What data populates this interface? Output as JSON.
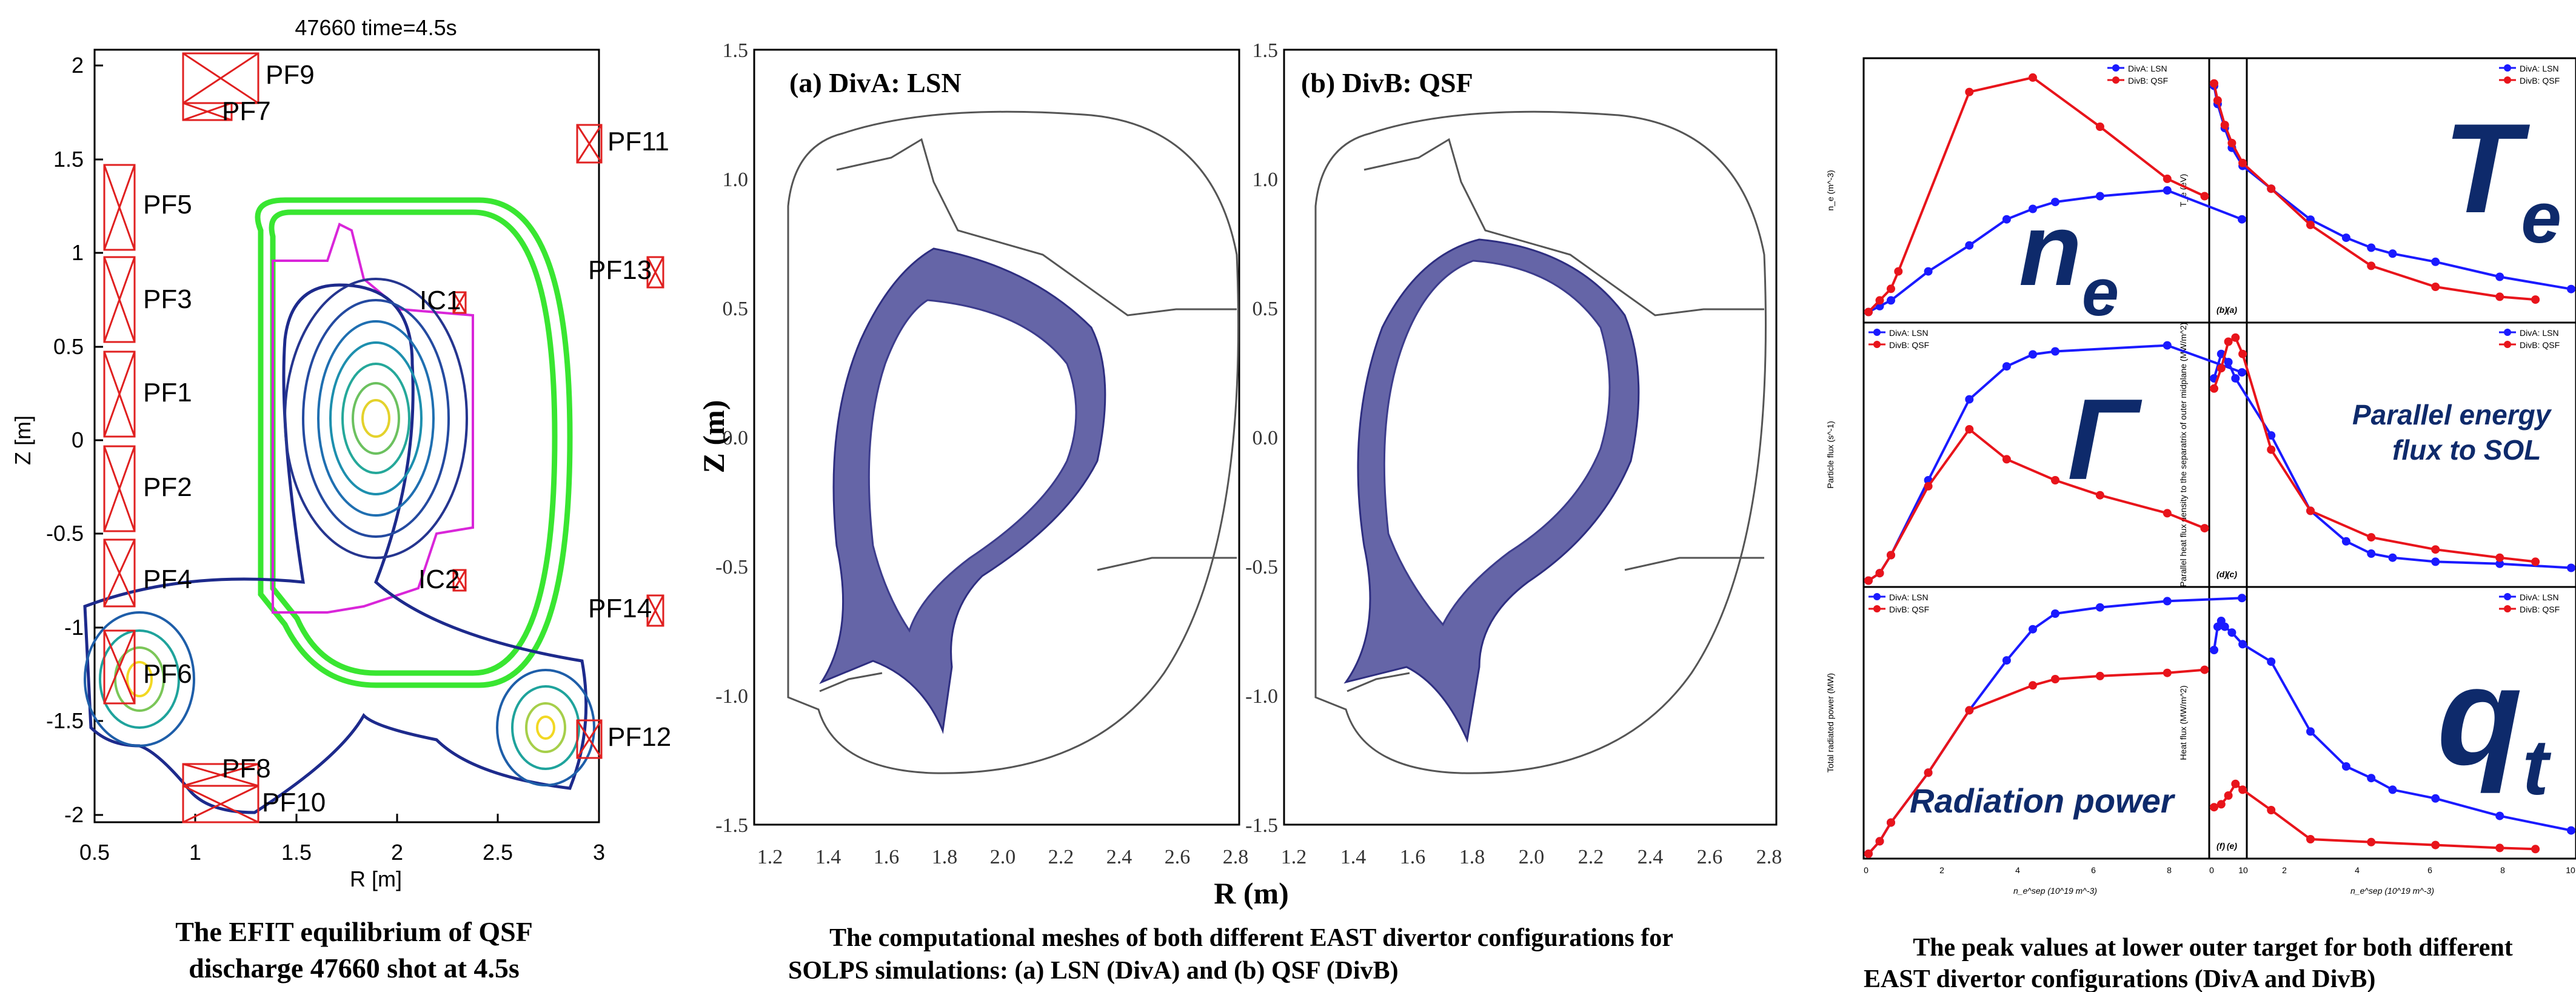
{
  "panel1": {
    "title": "47660 time=4.5s",
    "xlabel": "R [m]",
    "ylabel": "Z [m]",
    "xticks": [
      "0.5",
      "1",
      "1.5",
      "2",
      "2.5",
      "3"
    ],
    "yticks": [
      "2",
      "1.5",
      "1",
      "0.5",
      "0",
      "-0.5",
      "-1",
      "-1.5",
      "-2"
    ],
    "coils": [
      "PF9",
      "PF7",
      "PF11",
      "PF5",
      "PF13",
      "PF3",
      "IC1",
      "PF1",
      "PF2",
      "PF4",
      "IC2",
      "PF14",
      "PF6",
      "PF12",
      "PF8",
      "PF10"
    ],
    "caption_line1": "The EFIT equilibrium of QSF",
    "caption_line2": "discharge 47660 shot at 4.5s"
  },
  "panel2": {
    "labelA": "(a) DivA: LSN",
    "labelB": "(b) DivB: QSF",
    "ylabel": "Z (m)",
    "xlabel": "R (m)",
    "yticks": [
      "1.5",
      "1.0",
      "0.5",
      "0.0",
      "-0.5",
      "-1.0",
      "-1.5"
    ],
    "xticksA": [
      "1.2",
      "1.4",
      "1.6",
      "1.8",
      "2.0",
      "2.2",
      "2.4",
      "2.6",
      "2.8"
    ],
    "xticksB": [
      "1.2",
      "1.4",
      "1.6",
      "1.8",
      "2.0",
      "2.2",
      "2.4",
      "2.6",
      "2.8"
    ],
    "caption_line1": "The computational meshes of both different EAST divertor configurations for",
    "caption_line2": "SOLPS simulations: (a) LSN (DivA) and (b) QSF (DivB)"
  },
  "panel3": {
    "caption_line1": "The peak values at lower outer target for both different",
    "caption_line2": "EAST divertor configurations (DivA and DivB)",
    "legendA": "DivA: LSN",
    "legendB": "DivB: QSF",
    "colorA": "#1a1aff",
    "colorB": "#e8141b",
    "xlabel": "n_e^sep (10^19 m^-3)",
    "xticks": [
      "0",
      "2",
      "4",
      "6",
      "8",
      "10"
    ],
    "big_ne": "n",
    "big_ne_sub": "e",
    "big_te": "T",
    "big_te_sub": "e",
    "big_gamma": "Γ",
    "big_qt": "q",
    "big_qt_sub": "t",
    "parallel_line1": "Parallel  energy",
    "parallel_line2": "flux to SOL",
    "radiation": "Radiation power",
    "sub_a": "(a)",
    "sub_b": "(b)",
    "sub_c": "(c)",
    "sub_d": "(d)",
    "sub_e": "(e)",
    "sub_f": "(f)",
    "yl_a": "n_e (m^-3)",
    "yl_b": "T_e (eV)",
    "yl_c": "Particle flux (s^-1)",
    "yl_d": "Parallel heat flux density to the separatrix of outer midplane (MW/m^2)",
    "yl_e": "Total radiated power (MW)",
    "yl_f": "Heat flux (MW/m^2)"
  },
  "chart_data": [
    {
      "type": "line",
      "id": "a",
      "ylabel": "n_e (m^-3)",
      "xlim": [
        0,
        10
      ],
      "ylim": [
        0,
        4.4e+20
      ],
      "series": [
        {
          "name": "DivA: LSN",
          "x": [
            0,
            0.3,
            0.6,
            1.6,
            2.7,
            3.7,
            4.4,
            5.0,
            6.2,
            8.0,
            10.0
          ],
          "y": [
            1e+19,
            2e+19,
            3e+19,
            8e+19,
            1.25e+20,
            1.7e+20,
            1.88e+20,
            2e+20,
            2.1e+20,
            2.2e+20,
            1.7e+20
          ]
        },
        {
          "name": "DivB: QSF",
          "x": [
            0,
            0.3,
            0.6,
            0.8,
            2.7,
            4.4,
            6.2,
            8.0,
            9.0
          ],
          "y": [
            1e+19,
            3e+19,
            5e+19,
            8e+19,
            3.9e+20,
            4.15e+20,
            3.3e+20,
            2.4e+20,
            2.1e+20
          ]
        }
      ]
    },
    {
      "type": "line",
      "id": "b",
      "ylabel": "T_e (eV)",
      "xlim": [
        0,
        10
      ],
      "ylim": [
        1,
        300
      ],
      "yscale": "log",
      "series": [
        {
          "name": "DivA: LSN",
          "x": [
            0,
            0.1,
            0.3,
            0.5,
            0.8,
            1.6,
            2.7,
            3.7,
            4.4,
            5.0,
            6.2,
            8.0,
            10.0
          ],
          "y": [
            180,
            120,
            70,
            45,
            30,
            18,
            9,
            6,
            4.8,
            4.2,
            3.5,
            2.5,
            1.9
          ]
        },
        {
          "name": "DivB: QSF",
          "x": [
            0,
            0.1,
            0.3,
            0.5,
            0.8,
            1.6,
            2.7,
            4.4,
            6.2,
            8.0,
            9.0
          ],
          "y": [
            190,
            130,
            75,
            50,
            32,
            18,
            8,
            3.2,
            2.0,
            1.6,
            1.5
          ]
        }
      ]
    },
    {
      "type": "line",
      "id": "c",
      "ylabel": "Particle flux (s^-1)",
      "xlim": [
        0,
        10
      ],
      "ylim": [
        0,
        8.5e+23
      ],
      "series": [
        {
          "name": "DivA: LSN",
          "x": [
            0,
            0.3,
            0.6,
            1.6,
            2.7,
            3.7,
            4.4,
            5.0,
            8.0,
            10.0
          ],
          "y": [
            5e+21,
            3e+22,
            9e+22,
            3.4e+23,
            6.1e+23,
            7.2e+23,
            7.6e+23,
            7.7e+23,
            7.9e+23,
            7e+23
          ]
        },
        {
          "name": "DivB: QSF",
          "x": [
            0,
            0.3,
            0.6,
            1.6,
            2.7,
            3.7,
            5.0,
            6.2,
            8.0,
            9.0
          ],
          "y": [
            5e+21,
            3e+22,
            9e+22,
            3.2e+23,
            5.1e+23,
            4.1e+23,
            3.4e+23,
            2.9e+23,
            2.3e+23,
            1.8e+23
          ]
        }
      ]
    },
    {
      "type": "line",
      "id": "d",
      "ylabel": "Parallel heat flux density to the separatrix of outer midplane (MW/m^2)",
      "xlim": [
        0,
        10
      ],
      "ylim": [
        0,
        125
      ],
      "series": [
        {
          "name": "DivA: LSN",
          "x": [
            0,
            0.2,
            0.4,
            0.6,
            1.6,
            2.7,
            3.7,
            4.4,
            5.0,
            6.2,
            8.0,
            10.0
          ],
          "y": [
            100,
            112,
            108,
            100,
            72,
            35,
            20,
            14,
            12,
            10,
            9,
            7
          ]
        },
        {
          "name": "DivB: QSF",
          "x": [
            0,
            0.2,
            0.4,
            0.6,
            0.8,
            1.6,
            2.7,
            4.4,
            6.2,
            8.0,
            9.0
          ],
          "y": [
            95,
            105,
            118,
            120,
            112,
            65,
            35,
            22,
            16,
            12,
            10
          ]
        }
      ]
    },
    {
      "type": "line",
      "id": "e",
      "ylabel": "Total radiated power (MW)",
      "xlim": [
        0,
        10
      ],
      "ylim": [
        0,
        0.42
      ],
      "series": [
        {
          "name": "DivA: LSN",
          "x": [
            0,
            0.3,
            0.6,
            1.6,
            2.7,
            3.7,
            4.4,
            5.0,
            6.2,
            8.0,
            10.0
          ],
          "y": [
            0.0,
            0.02,
            0.05,
            0.13,
            0.23,
            0.31,
            0.36,
            0.385,
            0.395,
            0.405,
            0.41
          ]
        },
        {
          "name": "DivB: QSF",
          "x": [
            0,
            0.3,
            0.6,
            1.6,
            2.7,
            4.4,
            5.0,
            6.2,
            8.0,
            9.0
          ],
          "y": [
            0.0,
            0.02,
            0.05,
            0.13,
            0.23,
            0.27,
            0.28,
            0.285,
            0.29,
            0.295
          ]
        }
      ]
    },
    {
      "type": "line",
      "id": "f",
      "ylabel": "Heat flux (MW/m^2)",
      "xlim": [
        0,
        10
      ],
      "ylim": [
        0,
        4.5
      ],
      "series": [
        {
          "name": "DivA: LSN",
          "x": [
            0,
            0.1,
            0.2,
            0.3,
            0.5,
            0.8,
            1.6,
            2.7,
            3.7,
            4.4,
            5.0,
            6.2,
            8.0,
            10.0
          ],
          "y": [
            3.5,
            3.9,
            4.0,
            3.9,
            3.8,
            3.6,
            3.3,
            2.1,
            1.5,
            1.3,
            1.1,
            0.95,
            0.65,
            0.4
          ]
        },
        {
          "name": "DivB: QSF",
          "x": [
            0,
            0.2,
            0.4,
            0.6,
            0.8,
            1.6,
            2.7,
            4.4,
            6.2,
            8.0,
            9.0
          ],
          "y": [
            0.8,
            0.85,
            1.0,
            1.2,
            1.1,
            0.75,
            0.25,
            0.2,
            0.15,
            0.1,
            0.08
          ]
        }
      ]
    }
  ]
}
